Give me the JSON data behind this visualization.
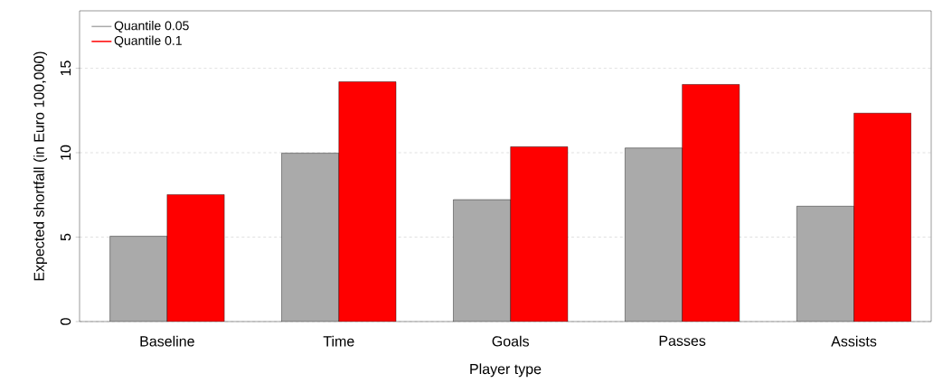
{
  "chart_data": {
    "type": "bar",
    "xlabel": "Player type",
    "ylabel": "Expected shortfall (in Euro 100,000)",
    "categories": [
      "Baseline",
      "Time",
      "Goals",
      "Passes",
      "Assists"
    ],
    "series": [
      {
        "name": "Quantile 0.05",
        "color": "#aaaaaa",
        "values": [
          5.05,
          9.97,
          7.22,
          10.28,
          6.83
        ]
      },
      {
        "name": "Quantile 0.1",
        "color": "#ff0000",
        "values": [
          7.52,
          14.2,
          10.35,
          14.04,
          12.34
        ]
      }
    ],
    "ylim": [
      0,
      18.4
    ],
    "yticks": [
      0,
      5,
      10,
      15
    ],
    "grid": "y",
    "legend": "top left"
  }
}
